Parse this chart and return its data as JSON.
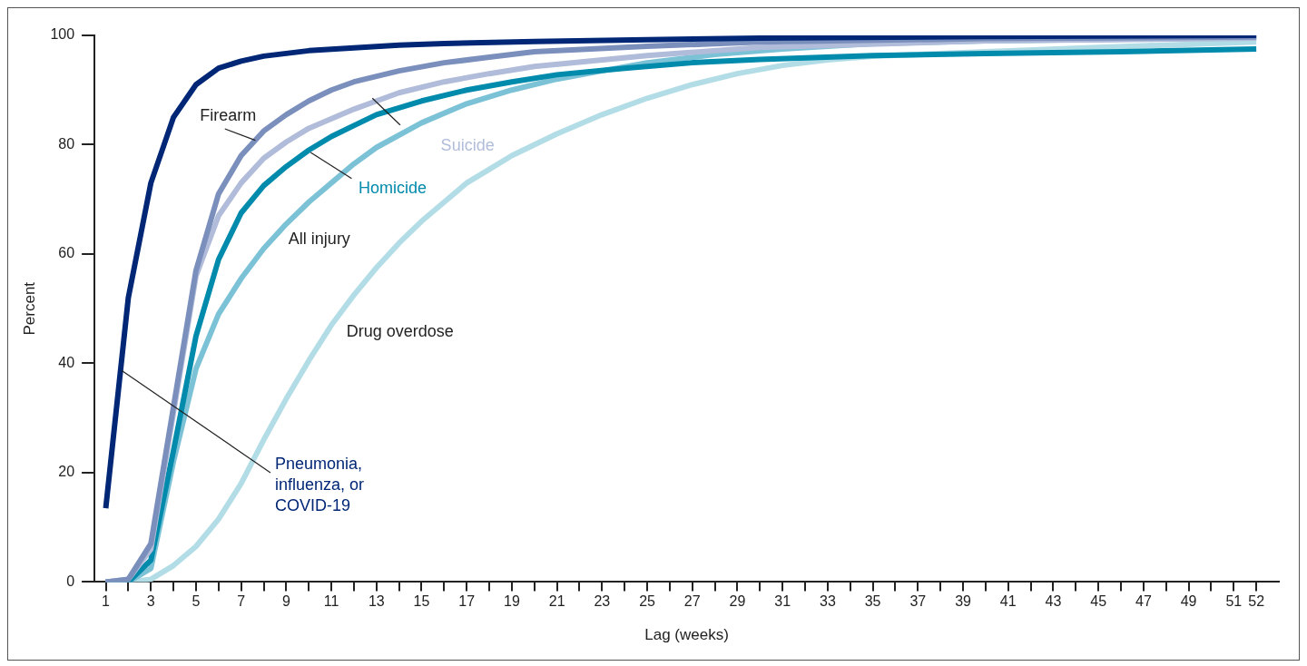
{
  "chart_data": {
    "type": "line",
    "xlabel": "Lag (weeks)",
    "ylabel": "Percent",
    "xlim": [
      0.5,
      53
    ],
    "ylim": [
      0,
      100
    ],
    "yticks": [
      0,
      20,
      40,
      60,
      80,
      100
    ],
    "xticks": [
      1,
      {
        "value": 2,
        "label": null
      },
      3,
      {
        "value": 4,
        "label": null
      },
      5,
      {
        "value": 6,
        "label": null
      },
      7,
      {
        "value": 8,
        "label": null
      },
      9,
      {
        "value": 10,
        "label": null
      },
      11,
      {
        "value": 12,
        "label": null
      },
      13,
      {
        "value": 14,
        "label": null
      },
      15,
      {
        "value": 16,
        "label": null
      },
      17,
      {
        "value": 18,
        "label": null
      },
      19,
      {
        "value": 20,
        "label": null
      },
      21,
      {
        "value": 22,
        "label": null
      },
      23,
      {
        "value": 24,
        "label": null
      },
      25,
      {
        "value": 26,
        "label": null
      },
      27,
      {
        "value": 28,
        "label": null
      },
      29,
      {
        "value": 30,
        "label": null
      },
      31,
      {
        "value": 32,
        "label": null
      },
      33,
      {
        "value": 34,
        "label": null
      },
      35,
      {
        "value": 36,
        "label": null
      },
      37,
      {
        "value": 38,
        "label": null
      },
      39,
      {
        "value": 40,
        "label": null
      },
      41,
      {
        "value": 42,
        "label": null
      },
      43,
      {
        "value": 44,
        "label": null
      },
      45,
      {
        "value": 46,
        "label": null
      },
      47,
      {
        "value": 48,
        "label": null
      },
      49,
      {
        "value": 50,
        "label": null
      },
      51,
      52
    ],
    "grid": false,
    "legend": false,
    "marker": "none",
    "line_style": "solid",
    "series": [
      {
        "name": "Pneumonia, influenza, or COVID-19",
        "color": "#002676",
        "x": [
          1,
          2,
          3,
          4,
          5,
          6,
          7,
          8,
          9,
          10,
          12,
          14,
          16,
          20,
          25,
          30,
          40,
          52
        ],
        "values": [
          13.5,
          52,
          73,
          85,
          91,
          94,
          95.3,
          96.2,
          96.7,
          97.2,
          97.7,
          98.2,
          98.5,
          98.9,
          99.2,
          99.5,
          99.8,
          100
        ]
      },
      {
        "name": "Firearm",
        "color": "#7b8fbd",
        "x": [
          1,
          2,
          3,
          4,
          5,
          6,
          7,
          8,
          9,
          10,
          11,
          12,
          14,
          16,
          18,
          20,
          25,
          30,
          40,
          52
        ],
        "values": [
          0,
          0.5,
          7,
          32,
          57,
          71,
          78,
          82.5,
          85.5,
          88,
          90,
          91.5,
          93.5,
          95,
          96,
          97,
          98,
          98.8,
          99.4,
          99.7
        ]
      },
      {
        "name": "Suicide",
        "color": "#b0bcd9",
        "x": [
          1,
          2,
          3,
          4,
          5,
          6,
          7,
          8,
          9,
          10,
          12,
          14,
          16,
          18,
          20,
          25,
          30,
          40,
          52
        ],
        "values": [
          0,
          0.5,
          6,
          31,
          56,
          67,
          73,
          77.5,
          80.5,
          83,
          86.5,
          89.5,
          91.5,
          93,
          94.3,
          96.3,
          97.8,
          99,
          99.5
        ]
      },
      {
        "name": "Homicide",
        "color": "#008aab",
        "x": [
          1,
          2,
          3,
          4,
          5,
          6,
          7,
          8,
          9,
          10,
          11,
          12,
          13,
          15,
          17,
          19,
          21,
          24,
          27,
          30,
          35,
          40,
          46,
          52
        ],
        "values": [
          0,
          0,
          4,
          24,
          45,
          59,
          67.5,
          72.5,
          76,
          79,
          81.5,
          83.5,
          85.5,
          88,
          90,
          91.5,
          92.8,
          94,
          95,
          95.6,
          96.3,
          96.7,
          97,
          97.5
        ]
      },
      {
        "name": "All injury",
        "color": "#7cc2d6",
        "x": [
          1,
          2,
          3,
          4,
          5,
          6,
          7,
          8,
          9,
          10,
          11,
          12,
          13,
          15,
          17,
          19,
          21,
          23,
          25,
          28,
          31,
          35,
          40,
          52
        ],
        "values": [
          0,
          0,
          2.5,
          22,
          39,
          49,
          55.5,
          61,
          65.5,
          69.5,
          73,
          76.5,
          79.5,
          84,
          87.5,
          90,
          92,
          93.5,
          95,
          96.5,
          97.5,
          98.5,
          99,
          99.6
        ]
      },
      {
        "name": "Drug overdose",
        "color": "#b3dde6",
        "x": [
          1,
          2,
          3,
          4,
          5,
          6,
          7,
          8,
          9,
          10,
          11,
          12,
          13,
          14,
          15,
          16,
          17,
          18,
          19,
          21,
          23,
          25,
          27,
          29,
          31,
          33,
          35,
          40,
          45,
          52
        ],
        "values": [
          0,
          0,
          0.5,
          3,
          6.5,
          11.5,
          18,
          26,
          33.5,
          40.5,
          47,
          52.5,
          57.5,
          62,
          66,
          69.5,
          73,
          75.5,
          78,
          82,
          85.5,
          88.5,
          91,
          93,
          94.5,
          95.5,
          96.2,
          97,
          97.8,
          98.8
        ]
      }
    ]
  }
}
